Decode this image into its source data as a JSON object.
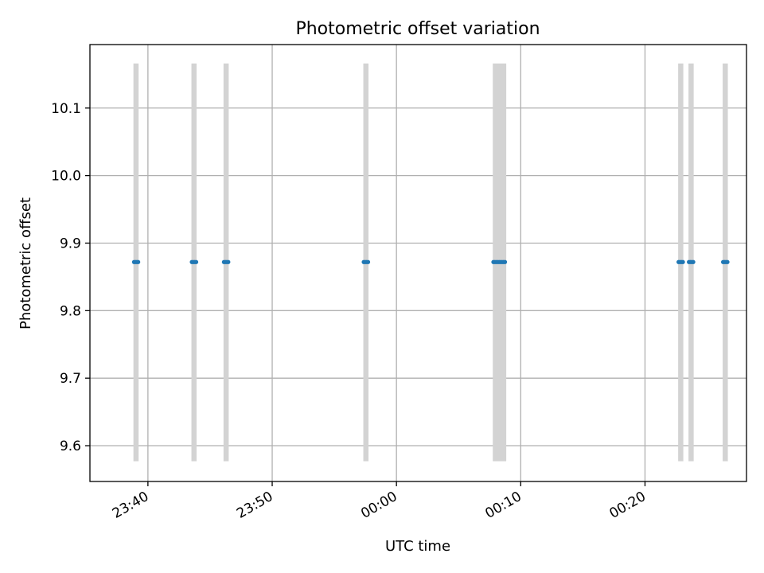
{
  "chart_data": {
    "type": "scatter",
    "title": "Photometric offset variation",
    "xlabel": "UTC time",
    "ylabel": "Photometric offset",
    "x_unit": "UTC clock time",
    "xlim": [
      "23:35:20",
      "00:28:10"
    ],
    "ylim": [
      9.547,
      10.194
    ],
    "x_ticks": [
      "23:40",
      "23:50",
      "00:00",
      "00:10",
      "00:20"
    ],
    "y_ticks": [
      9.6,
      9.7,
      9.8,
      9.9,
      10.0,
      10.1
    ],
    "grid": true,
    "band_range": [
      9.577,
      10.166
    ],
    "bands": [
      {
        "start": "23:38:50",
        "end": "23:39:15"
      },
      {
        "start": "23:43:30",
        "end": "23:43:55"
      },
      {
        "start": "23:46:05",
        "end": "23:46:30"
      },
      {
        "start": "23:57:20",
        "end": "23:57:45"
      },
      {
        "start": "00:07:45",
        "end": "00:08:50"
      },
      {
        "start": "00:22:40",
        "end": "00:23:05"
      },
      {
        "start": "00:23:30",
        "end": "00:23:55"
      },
      {
        "start": "00:26:15",
        "end": "00:26:40"
      }
    ],
    "series": [
      {
        "points": [
          {
            "x": "23:38:53",
            "y": 9.872
          },
          {
            "x": "23:39:00",
            "y": 9.872
          },
          {
            "x": "23:39:07",
            "y": 9.872
          },
          {
            "x": "23:39:13",
            "y": 9.872
          },
          {
            "x": "23:43:32",
            "y": 9.872
          },
          {
            "x": "23:43:39",
            "y": 9.872
          },
          {
            "x": "23:43:46",
            "y": 9.872
          },
          {
            "x": "23:43:53",
            "y": 9.872
          },
          {
            "x": "23:46:07",
            "y": 9.872
          },
          {
            "x": "23:46:14",
            "y": 9.872
          },
          {
            "x": "23:46:21",
            "y": 9.872
          },
          {
            "x": "23:46:28",
            "y": 9.872
          },
          {
            "x": "23:57:22",
            "y": 9.872
          },
          {
            "x": "23:57:29",
            "y": 9.872
          },
          {
            "x": "23:57:36",
            "y": 9.872
          },
          {
            "x": "23:57:43",
            "y": 9.872
          },
          {
            "x": "00:07:48",
            "y": 9.872
          },
          {
            "x": "00:07:55",
            "y": 9.872
          },
          {
            "x": "00:08:02",
            "y": 9.872
          },
          {
            "x": "00:08:09",
            "y": 9.872
          },
          {
            "x": "00:08:16",
            "y": 9.872
          },
          {
            "x": "00:08:23",
            "y": 9.872
          },
          {
            "x": "00:08:30",
            "y": 9.872
          },
          {
            "x": "00:08:37",
            "y": 9.872
          },
          {
            "x": "00:08:44",
            "y": 9.872
          },
          {
            "x": "00:22:42",
            "y": 9.872
          },
          {
            "x": "00:22:49",
            "y": 9.872
          },
          {
            "x": "00:22:56",
            "y": 9.872
          },
          {
            "x": "00:23:03",
            "y": 9.872
          },
          {
            "x": "00:23:32",
            "y": 9.872
          },
          {
            "x": "00:23:39",
            "y": 9.872
          },
          {
            "x": "00:23:46",
            "y": 9.872
          },
          {
            "x": "00:23:53",
            "y": 9.872
          },
          {
            "x": "00:26:17",
            "y": 9.872
          },
          {
            "x": "00:26:24",
            "y": 9.872
          },
          {
            "x": "00:26:31",
            "y": 9.872
          },
          {
            "x": "00:26:38",
            "y": 9.872
          }
        ],
        "color": "#1f77b4"
      }
    ],
    "band_color": "#d3d3d3"
  }
}
